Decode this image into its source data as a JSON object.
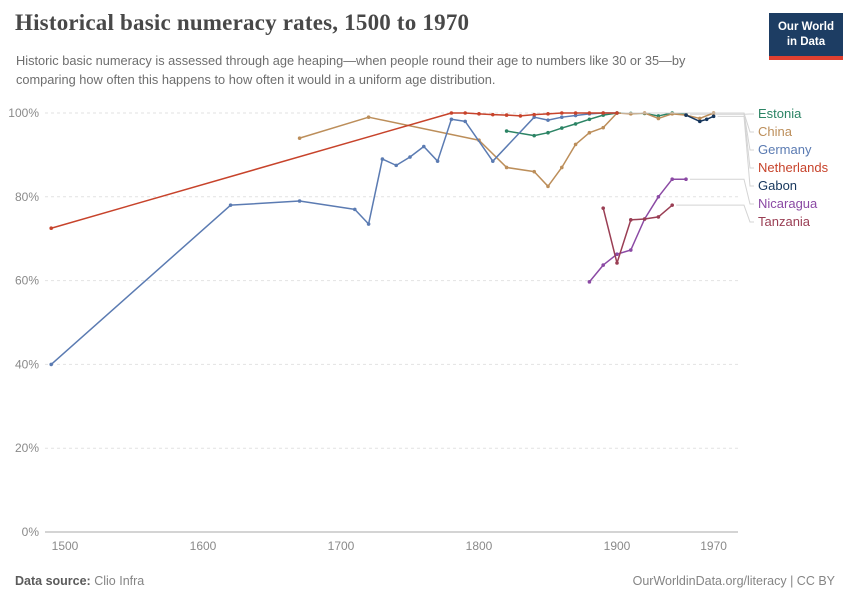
{
  "header": {
    "title": "Historical basic numeracy rates, 1500 to 1970",
    "subtitle": "Historic basic numeracy is assessed through age heaping—when people round their age to numbers like 30 or 35—by comparing how often this happens to how often it would in a uniform age distribution.",
    "logo_line1": "Our World",
    "logo_line2": "in Data"
  },
  "footer": {
    "source_label": "Data source:",
    "source_value": "Clio Infra",
    "credit": "OurWorldinData.org/literacy | CC BY"
  },
  "colors": {
    "logo_navy": "#1d3d63",
    "logo_red": "#e04030",
    "gridline": "#e2e2e2",
    "axis": "#a8a8a8",
    "tick_text": "#8a8a8a",
    "connector": "#d4d4d4"
  },
  "chart_data": {
    "type": "line",
    "title": "Historical basic numeracy rates, 1500 to 1970",
    "xlabel": "",
    "ylabel": "",
    "x_ticks": [
      1500,
      1600,
      1700,
      1800,
      1900,
      1970
    ],
    "x_tick_labels": [
      "1500",
      "1600",
      "1700",
      "1800",
      "1900",
      "1970"
    ],
    "y_ticks": [
      0,
      20,
      40,
      60,
      80,
      100
    ],
    "y_tick_format": "percent",
    "xlim": [
      1485,
      1988
    ],
    "ylim": [
      0,
      100
    ],
    "grid": "dashed-horizontal",
    "legend_position": "right",
    "series": [
      {
        "name": "Estonia",
        "color": "#2c8465",
        "points": [
          [
            1820,
            95.7
          ],
          [
            1840,
            94.6
          ],
          [
            1850,
            95.3
          ],
          [
            1860,
            96.4
          ],
          [
            1870,
            97.4
          ],
          [
            1880,
            98.5
          ],
          [
            1890,
            99.5
          ],
          [
            1900,
            100
          ],
          [
            1910,
            99.9
          ],
          [
            1920,
            99.9
          ],
          [
            1930,
            99.3
          ],
          [
            1940,
            100
          ],
          [
            1950,
            99.7
          ]
        ]
      },
      {
        "name": "China",
        "color": "#bc8e5a",
        "points": [
          [
            1670,
            94
          ],
          [
            1720,
            99
          ],
          [
            1800,
            93.5
          ],
          [
            1820,
            87
          ],
          [
            1840,
            86
          ],
          [
            1850,
            82.5
          ],
          [
            1860,
            87
          ],
          [
            1870,
            92.5
          ],
          [
            1880,
            95.3
          ],
          [
            1890,
            96.5
          ],
          [
            1900,
            100
          ],
          [
            1910,
            99.8
          ],
          [
            1920,
            100
          ],
          [
            1930,
            98.7
          ],
          [
            1940,
            99.8
          ],
          [
            1950,
            99.5
          ],
          [
            1960,
            98.7
          ],
          [
            1970,
            100
          ]
        ]
      },
      {
        "name": "Germany",
        "color": "#5b7bb2",
        "points": [
          [
            1490,
            40
          ],
          [
            1620,
            78
          ],
          [
            1670,
            79
          ],
          [
            1710,
            77
          ],
          [
            1720,
            73.5
          ],
          [
            1730,
            89
          ],
          [
            1740,
            87.5
          ],
          [
            1750,
            89.5
          ],
          [
            1760,
            92
          ],
          [
            1770,
            88.5
          ],
          [
            1780,
            98.5
          ],
          [
            1790,
            98
          ],
          [
            1810,
            88.5
          ],
          [
            1840,
            99
          ],
          [
            1850,
            98.3
          ],
          [
            1860,
            99
          ],
          [
            1870,
            99.4
          ],
          [
            1880,
            99.8
          ],
          [
            1890,
            100
          ],
          [
            1900,
            100
          ]
        ]
      },
      {
        "name": "Netherlands",
        "color": "#c7432b",
        "points": [
          [
            1490,
            72.5
          ],
          [
            1780,
            100
          ],
          [
            1790,
            100
          ],
          [
            1800,
            99.8
          ],
          [
            1810,
            99.6
          ],
          [
            1820,
            99.5
          ],
          [
            1830,
            99.3
          ],
          [
            1840,
            99.6
          ],
          [
            1850,
            99.8
          ],
          [
            1860,
            100
          ],
          [
            1870,
            100
          ],
          [
            1880,
            100
          ],
          [
            1890,
            100
          ],
          [
            1900,
            100
          ]
        ]
      },
      {
        "name": "Gabon",
        "color": "#16365c",
        "points": [
          [
            1950,
            99.5
          ],
          [
            1960,
            98
          ],
          [
            1965,
            98.5
          ],
          [
            1970,
            99.2
          ]
        ]
      },
      {
        "name": "Nicaragua",
        "color": "#8b4aa4",
        "points": [
          [
            1880,
            59.7
          ],
          [
            1890,
            63.7
          ],
          [
            1900,
            66.3
          ],
          [
            1910,
            67.3
          ],
          [
            1920,
            74.7
          ],
          [
            1930,
            80
          ],
          [
            1940,
            84.2
          ],
          [
            1950,
            84.2
          ]
        ]
      },
      {
        "name": "Tanzania",
        "color": "#9a3e54",
        "points": [
          [
            1890,
            77.3
          ],
          [
            1900,
            64.2
          ],
          [
            1910,
            74.5
          ],
          [
            1920,
            74.7
          ],
          [
            1930,
            75.2
          ],
          [
            1940,
            78
          ]
        ]
      }
    ]
  }
}
